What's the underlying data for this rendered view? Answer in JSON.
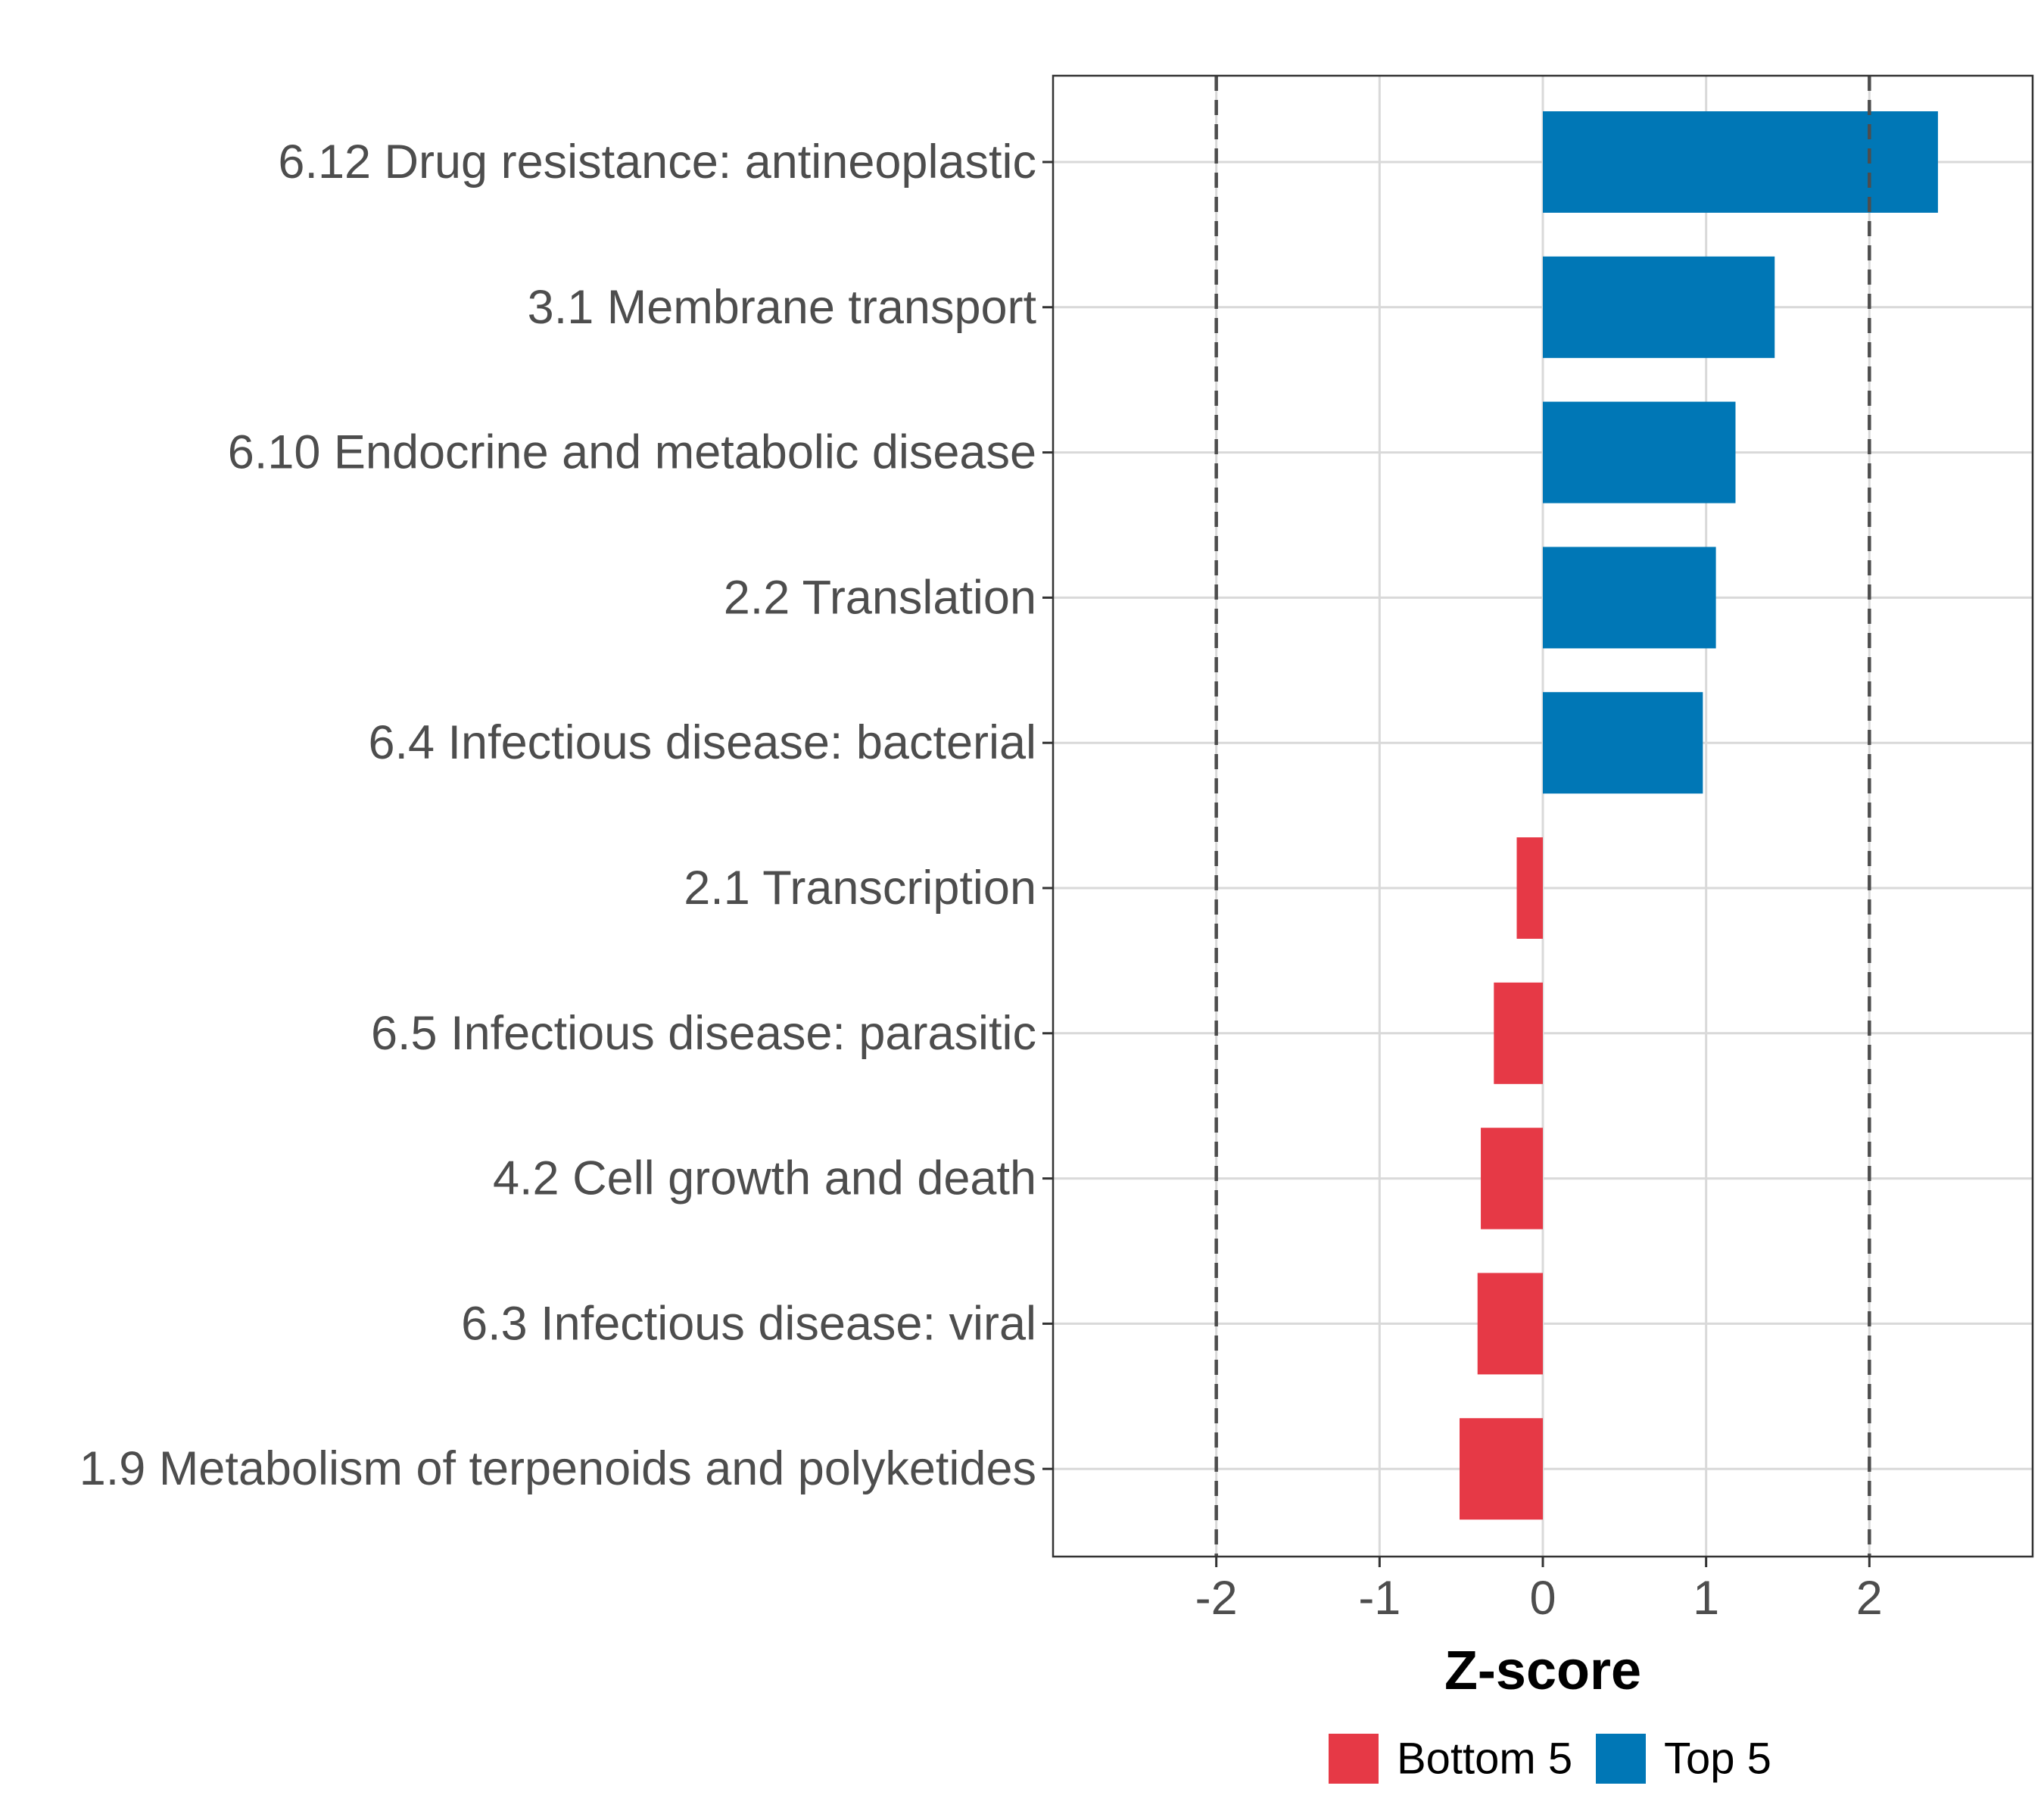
{
  "chart_data": {
    "type": "bar",
    "orientation": "horizontal",
    "xlabel": "Z-score",
    "ylabel": "",
    "xlim": [
      -3.0,
      3.0
    ],
    "xticks": [
      -2,
      -1,
      0,
      1,
      2
    ],
    "xtick_labels": [
      "-2",
      "-1",
      "0",
      "1",
      "2"
    ],
    "reference_lines": [
      -2,
      2
    ],
    "categories": [
      "6.12 Drug resistance: antineoplastic",
      "3.1 Membrane transport",
      "6.10 Endocrine and metabolic disease",
      "2.2 Translation",
      "6.4 Infectious disease: bacterial",
      "2.1 Transcription",
      "6.5 Infectious disease: parasitic",
      "4.2 Cell growth and death",
      "6.3 Infectious disease: viral",
      "1.9 Metabolism of terpenoids and polyketides"
    ],
    "values": [
      2.42,
      1.42,
      1.18,
      1.06,
      0.98,
      -0.16,
      -0.3,
      -0.38,
      -0.4,
      -0.51
    ],
    "groups": [
      "Top 5",
      "Top 5",
      "Top 5",
      "Top 5",
      "Top 5",
      "Bottom 5",
      "Bottom 5",
      "Bottom 5",
      "Bottom 5",
      "Bottom 5"
    ],
    "legend": {
      "position": "bottom",
      "entries": [
        {
          "label": "Bottom 5",
          "color": "#e63946"
        },
        {
          "label": "Top 5",
          "color": "#0077b6"
        }
      ]
    },
    "colors": {
      "Top 5": "#0077b6",
      "Bottom 5": "#e63946",
      "grid": "#d9d9d9",
      "reference": "#4d4d4d",
      "frame": "#333333"
    },
    "grid": true
  }
}
